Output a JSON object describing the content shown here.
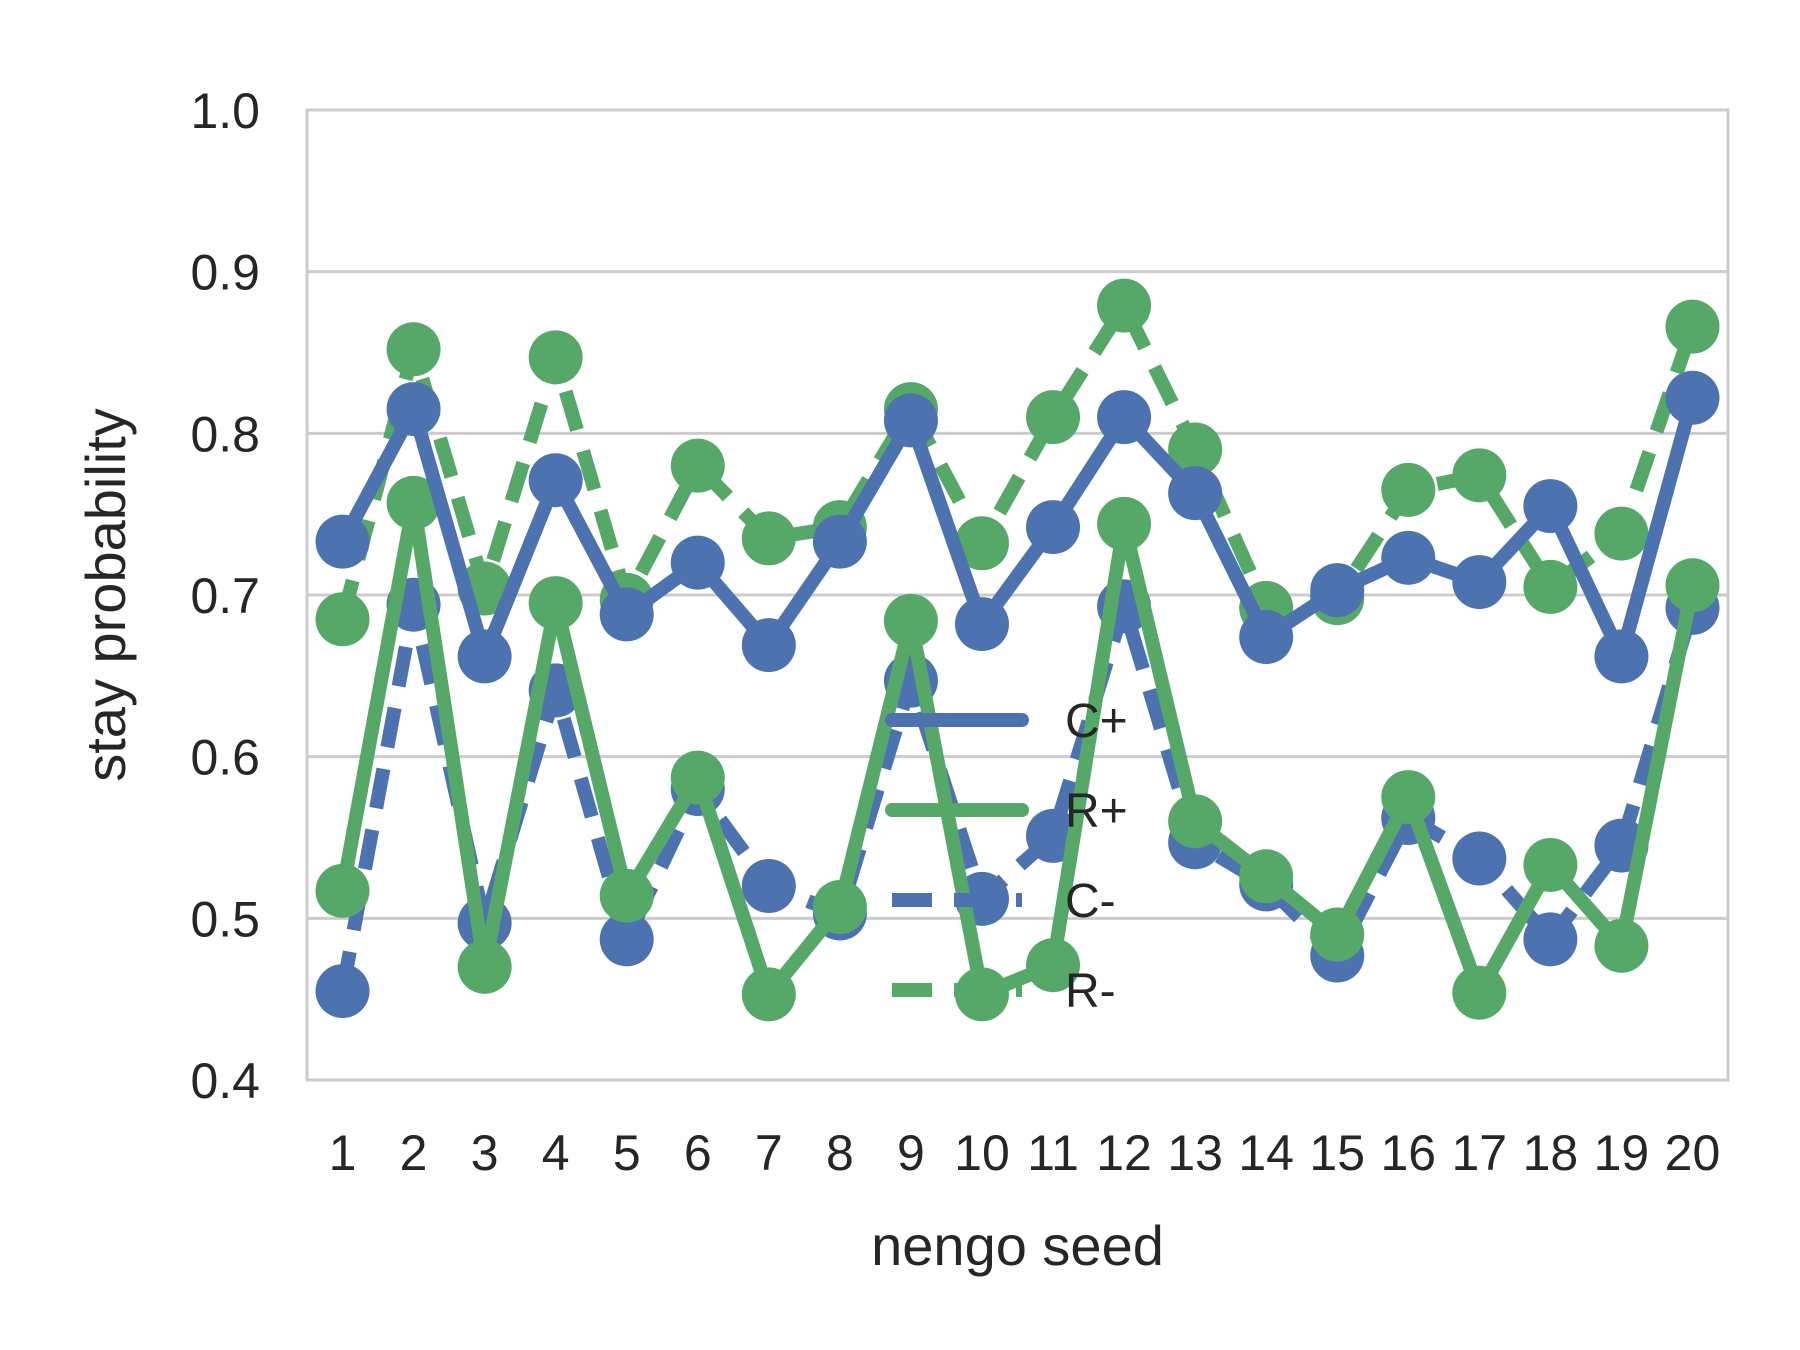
{
  "chart_data": {
    "type": "line",
    "xlabel": "nengo seed",
    "ylabel": "stay probability",
    "categories": [
      "1",
      "2",
      "3",
      "4",
      "5",
      "6",
      "7",
      "8",
      "9",
      "10",
      "11",
      "12",
      "13",
      "14",
      "15",
      "16",
      "17",
      "18",
      "19",
      "20"
    ],
    "ylim": [
      0.4,
      1.0
    ],
    "yticks": [
      "0.4",
      "0.5",
      "0.6",
      "0.7",
      "0.8",
      "0.9",
      "1.0"
    ],
    "grid": "horizontal",
    "legend_position": "center",
    "colors": {
      "C": "#4c72b0",
      "R": "#55a868",
      "grid": "#cccccc",
      "text": "#262626"
    },
    "series": [
      {
        "name": "C+",
        "color": "#4c72b0",
        "dash": "solid",
        "values": [
          0.733,
          0.815,
          0.662,
          0.771,
          0.688,
          0.72,
          0.669,
          0.733,
          0.808,
          0.682,
          0.742,
          0.81,
          0.763,
          0.674,
          0.703,
          0.723,
          0.708,
          0.755,
          0.662,
          0.822
        ]
      },
      {
        "name": "R+",
        "color": "#55a868",
        "dash": "solid",
        "values": [
          0.517,
          0.757,
          0.47,
          0.695,
          0.514,
          0.587,
          0.453,
          0.507,
          0.684,
          0.453,
          0.471,
          0.744,
          0.56,
          0.526,
          0.49,
          0.575,
          0.454,
          0.533,
          0.483,
          0.706
        ]
      },
      {
        "name": "C-",
        "color": "#4c72b0",
        "dash": "dashed",
        "values": [
          0.455,
          0.694,
          0.497,
          0.641,
          0.487,
          0.58,
          0.52,
          0.503,
          0.647,
          0.512,
          0.551,
          0.693,
          0.547,
          0.521,
          0.477,
          0.562,
          0.537,
          0.487,
          0.545,
          0.692
        ]
      },
      {
        "name": "R-",
        "color": "#55a868",
        "dash": "dashed",
        "values": [
          0.685,
          0.852,
          0.704,
          0.847,
          0.697,
          0.78,
          0.735,
          0.742,
          0.815,
          0.732,
          0.81,
          0.879,
          0.79,
          0.692,
          0.698,
          0.765,
          0.774,
          0.705,
          0.738,
          0.866
        ]
      }
    ]
  }
}
